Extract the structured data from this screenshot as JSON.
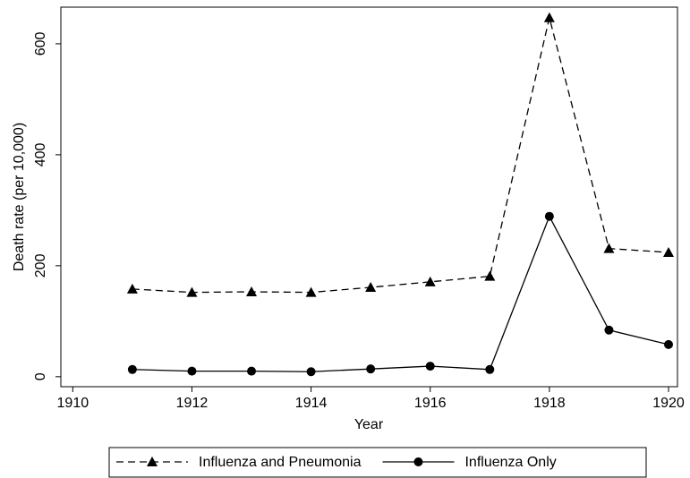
{
  "chart_data": {
    "type": "line",
    "x_label": "Year",
    "y_label": "Death rate (per 10,000)",
    "x": [
      1911,
      1912,
      1913,
      1914,
      1915,
      1916,
      1917,
      1918,
      1919,
      1920
    ],
    "series": [
      {
        "name": "Influenza and Pneumonia",
        "color": "#000000",
        "dash": "dashed",
        "marker": "triangle",
        "values": [
          158,
          152,
          153,
          152,
          161,
          171,
          181,
          647,
          231,
          224
        ]
      },
      {
        "name": "Influenza Only",
        "color": "#000000",
        "dash": "solid",
        "marker": "circle",
        "values": [
          13,
          10,
          10,
          9,
          14,
          19,
          13,
          289,
          84,
          58
        ]
      }
    ],
    "xlim": [
      1909.8,
      1920.15
    ],
    "xticks": [
      1910,
      1912,
      1914,
      1916,
      1918,
      1920
    ],
    "ylim": [
      -18,
      666
    ],
    "yticks": [
      0,
      200,
      400,
      600
    ],
    "grid": false,
    "legend": "bottom"
  }
}
